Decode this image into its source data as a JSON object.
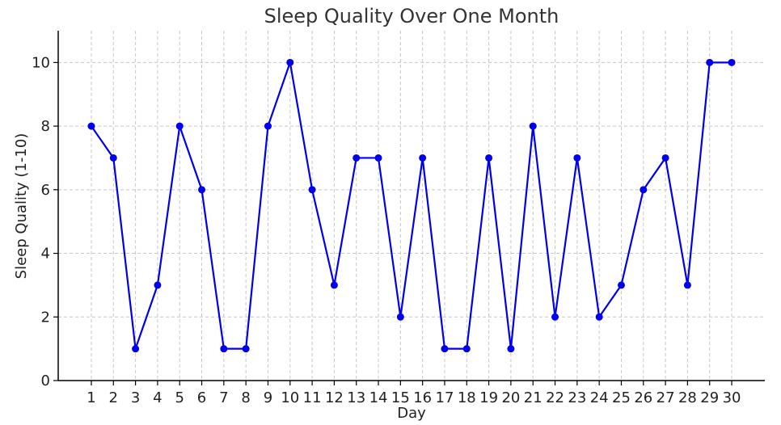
{
  "chart_data": {
    "type": "line",
    "title": "Sleep Quality Over One Month",
    "xlabel": "Day",
    "ylabel": "Sleep Quality (1-10)",
    "x": [
      1,
      2,
      3,
      4,
      5,
      6,
      7,
      8,
      9,
      10,
      11,
      12,
      13,
      14,
      15,
      16,
      17,
      18,
      19,
      20,
      21,
      22,
      23,
      24,
      25,
      26,
      27,
      28,
      29,
      30
    ],
    "series": [
      {
        "values": [
          8,
          7,
          1,
          3,
          8,
          6,
          1,
          1,
          8,
          10,
          6,
          3,
          7,
          7,
          2,
          7,
          1,
          1,
          7,
          1,
          8,
          2,
          7,
          2,
          3,
          6,
          7,
          3,
          10,
          10
        ],
        "color": "#0000ee",
        "marker": "circle"
      }
    ],
    "xlim": [
      -0.5,
      31.5
    ],
    "ylim": [
      0,
      11
    ],
    "yticks": [
      0,
      2,
      4,
      6,
      8,
      10
    ],
    "grid": true,
    "legend": "none"
  }
}
